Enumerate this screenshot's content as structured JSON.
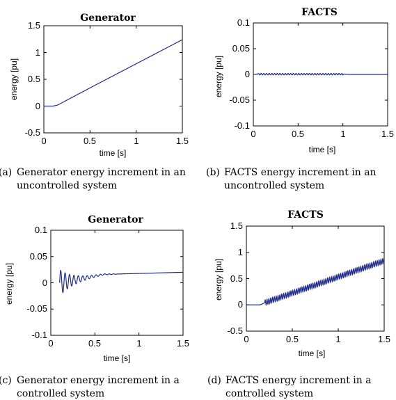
{
  "chart_data": [
    {
      "type": "line",
      "title": "Generator",
      "xlabel": "time [s]",
      "ylabel": "energy [pu]",
      "xlim": [
        0,
        1.5
      ],
      "ylim": [
        -0.5,
        1.5
      ],
      "xticks": [
        "0",
        "0.5",
        "1",
        "1.5"
      ],
      "yticks": [
        "-0.5",
        "0",
        "0.5",
        "1",
        "1.5"
      ],
      "series": [
        {
          "x": [
            0,
            0.1,
            0.15,
            0.5,
            1.0,
            1.5
          ],
          "y": [
            0,
            0,
            0.02,
            0.34,
            0.79,
            1.24
          ]
        }
      ],
      "grid": false,
      "caption_label": "(a)",
      "caption": [
        "Generator energy increment in an",
        "uncontrolled system"
      ]
    },
    {
      "type": "line",
      "title": "FACTS",
      "xlabel": "time [s]",
      "ylabel": "energy [pu]",
      "xlim": [
        0,
        1.5
      ],
      "ylim": [
        -0.1,
        0.1
      ],
      "xticks": [
        "0",
        "0.5",
        "1",
        "1.5"
      ],
      "yticks": [
        "-0.1",
        "-0.05",
        "0",
        "0.05",
        "0.1"
      ],
      "series": [
        {
          "x": [
            0,
            0.05,
            1.0,
            1.1,
            1.5
          ],
          "y": [
            0,
            0.0005,
            0.0005,
            0,
            0
          ],
          "oscillation": {
            "from": 0.05,
            "to": 1.0,
            "amplitude": 0.0015,
            "period": 0.03
          }
        }
      ],
      "grid": false,
      "caption_label": "(b)",
      "caption": [
        "FACTS energy increment in an",
        "uncontrolled system"
      ]
    },
    {
      "type": "line",
      "title": "Generator",
      "xlabel": "time [s]",
      "ylabel": "energy [pu]",
      "xlim": [
        0,
        1.5
      ],
      "ylim": [
        -0.1,
        0.1
      ],
      "xticks": [
        "0",
        "0.5",
        "1",
        "1.5"
      ],
      "yticks": [
        "-0.1",
        "-0.05",
        "0",
        "0.05",
        "0.1"
      ],
      "series": [
        {
          "x": [
            0.1,
            0.6,
            1.5
          ],
          "y": [
            0,
            0.016,
            0.02
          ],
          "oscillation": {
            "from": 0.1,
            "to": 0.75,
            "amplitude": 0.025,
            "period": 0.05,
            "decay": 0.16
          }
        }
      ],
      "grid": false,
      "caption_label": "(c)",
      "caption": [
        "Generator energy increment in a",
        "controlled system"
      ]
    },
    {
      "type": "line",
      "title": "FACTS",
      "xlabel": "time [s]",
      "ylabel": "energy [pu]",
      "xlim": [
        0,
        1.5
      ],
      "ylim": [
        -0.5,
        1.5
      ],
      "xticks": [
        "0",
        "0.5",
        "1",
        "1.5"
      ],
      "yticks": [
        "-0.5",
        "0",
        "0.5",
        "1",
        "1.5"
      ],
      "series": [
        {
          "x": [
            0,
            0.15,
            0.2,
            1.5
          ],
          "y": [
            0,
            0,
            0.04,
            0.84
          ],
          "oscillation": {
            "from": 0.2,
            "to": 1.5,
            "amplitude": 0.05,
            "period": 0.02
          }
        }
      ],
      "grid": false,
      "caption_label": "(d)",
      "caption": [
        "FACTS energy increment in a",
        "controlled system"
      ]
    }
  ]
}
